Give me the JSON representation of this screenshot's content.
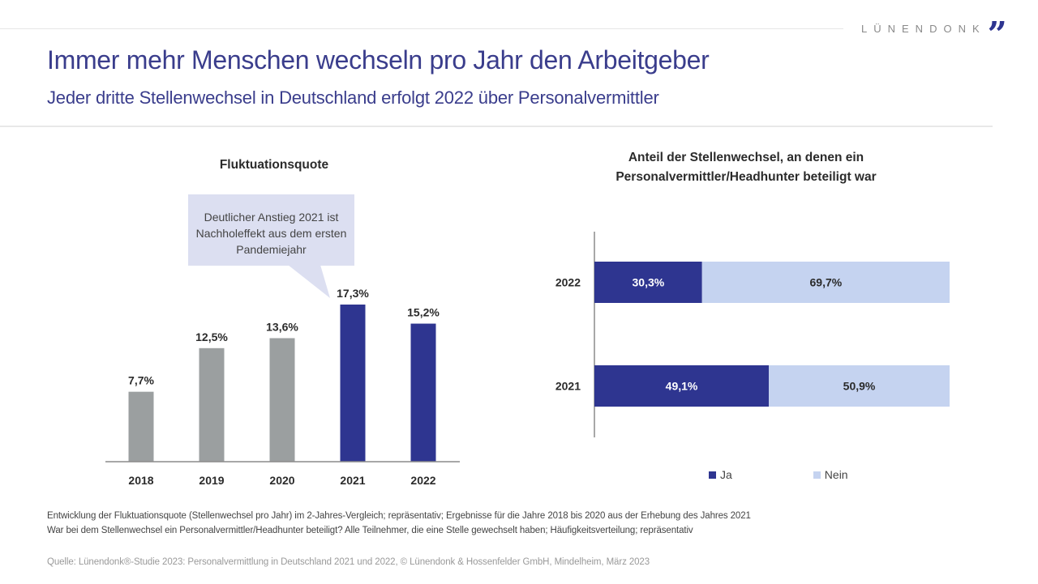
{
  "branding": {
    "logo_text": "LÜNENDONK",
    "logo_mark": "”",
    "accent_color": "#2e3590"
  },
  "header": {
    "title": "Immer mehr Menschen wechseln pro Jahr den Arbeitgeber",
    "subtitle": "Jeder dritte Stellenwechsel in Deutschland erfolgt 2022 über Personalvermittler"
  },
  "callout": {
    "text": "Deutlicher Anstieg 2021 ist Nachholeffekt aus dem ersten Pandemiejahr"
  },
  "chart_data": [
    {
      "type": "bar",
      "title": "Fluktuationsquote",
      "categories": [
        "2018",
        "2019",
        "2020",
        "2021",
        "2022"
      ],
      "values": [
        7.7,
        12.5,
        13.6,
        17.3,
        15.2
      ],
      "value_labels": [
        "7,7%",
        "12,5%",
        "13,6%",
        "17,3%",
        "15,2%"
      ],
      "colors": [
        "#9b9fa0",
        "#9b9fa0",
        "#9b9fa0",
        "#2e3590",
        "#2e3590"
      ],
      "xlabel": "",
      "ylabel": "",
      "ylim": [
        0,
        20
      ],
      "grid": false,
      "annotation": "Deutlicher Anstieg 2021 ist Nachholeffekt aus dem ersten Pandemiejahr"
    },
    {
      "type": "bar",
      "orientation": "horizontal",
      "stacked": true,
      "title": "Anteil der Stellenwechsel, an denen ein Personalvermittler/Headhunter beteiligt war",
      "categories": [
        "2022",
        "2021"
      ],
      "series": [
        {
          "name": "Ja",
          "values": [
            30.3,
            49.1
          ],
          "labels": [
            "30,3%",
            "49,1%"
          ],
          "color": "#2e3590"
        },
        {
          "name": "Nein",
          "values": [
            69.7,
            50.9
          ],
          "labels": [
            "69,7%",
            "50,9%"
          ],
          "color": "#c5d3f0"
        }
      ],
      "xlim": [
        0,
        100
      ],
      "grid": false,
      "legend": "bottom"
    }
  ],
  "legend": {
    "items": [
      {
        "label": "Ja",
        "color": "#2e3590"
      },
      {
        "label": "Nein",
        "color": "#c5d3f0"
      }
    ]
  },
  "footer": {
    "note1": "Entwicklung der Fluktuationsquote (Stellenwechsel pro Jahr) im 2-Jahres-Vergleich; repräsentativ; Ergebnisse für die Jahre 2018 bis 2020 aus der Erhebung des Jahres 2021",
    "note2": "War bei dem Stellenwechsel ein Personalvermittler/Headhunter beteiligt? Alle Teilnehmer, die eine Stelle gewechselt haben; Häufigkeitsverteilung; repräsentativ",
    "source": "Quelle: Lünendonk®-Studie 2023: Personalvermittlung in Deutschland 2021 und 2022, © Lünendonk & Hossenfelder GmbH, Mindelheim, März 2023"
  }
}
